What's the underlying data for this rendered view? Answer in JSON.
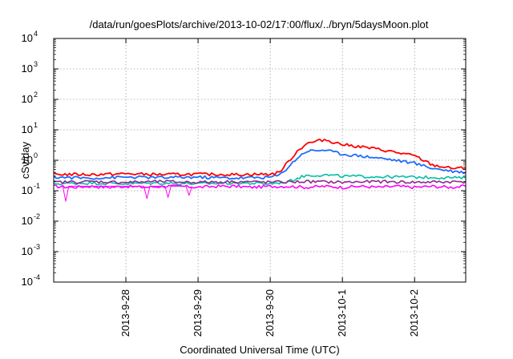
{
  "chart_data": {
    "type": "line",
    "title": "/data/run/goesPlots/archive/2013-10-02/17:00/flux/../bryn/5daysMoon.plot",
    "xlabel": "Coordinated Universal Time (UTC)",
    "ylabel": "cSv/day",
    "xlim": [
      "2013-09-27 00:00",
      "2013-10-02 17:00"
    ],
    "ylim": [
      0.0001,
      10000
    ],
    "yscale": "log",
    "grid": true,
    "legend": "none",
    "x_ticks": [
      "2013-9-28",
      "2013-9-29",
      "2013-9-30",
      "2013-10-1",
      "2013-10-2"
    ],
    "y_ticks": [
      {
        "value": 0.0001,
        "base": "10",
        "exp": "-4"
      },
      {
        "value": 0.001,
        "base": "10",
        "exp": "-3"
      },
      {
        "value": 0.01,
        "base": "10",
        "exp": "-2"
      },
      {
        "value": 0.1,
        "base": "10",
        "exp": "-1"
      },
      {
        "value": 1,
        "base": "10",
        "exp": "0"
      },
      {
        "value": 10,
        "base": "10",
        "exp": "1"
      },
      {
        "value": 100,
        "base": "10",
        "exp": "2"
      },
      {
        "value": 1000,
        "base": "10",
        "exp": "3"
      },
      {
        "value": 10000,
        "base": "10",
        "exp": "4"
      }
    ],
    "series": [
      {
        "color": "#ff00ff",
        "line_width": 1.6,
        "points": [
          [
            "2013-09-27 00:00",
            0.14
          ],
          [
            "2013-09-27 06:00",
            0.13
          ],
          [
            "2013-09-27 12:00",
            0.14
          ],
          [
            "2013-09-27 18:00",
            0.13
          ],
          [
            "2013-09-28 00:00",
            0.14
          ],
          [
            "2013-09-28 06:00",
            0.13
          ],
          [
            "2013-09-28 12:00",
            0.14
          ],
          [
            "2013-09-28 18:00",
            0.14
          ],
          [
            "2013-09-29 00:00",
            0.13
          ],
          [
            "2013-09-29 06:00",
            0.14
          ],
          [
            "2013-09-29 12:00",
            0.14
          ],
          [
            "2013-09-29 18:00",
            0.13
          ],
          [
            "2013-09-30 00:00",
            0.14
          ],
          [
            "2013-09-30 06:00",
            0.14
          ],
          [
            "2013-09-30 12:00",
            0.13
          ],
          [
            "2013-09-30 18:00",
            0.14
          ],
          [
            "2013-10-01 00:00",
            0.13
          ],
          [
            "2013-10-01 06:00",
            0.14
          ],
          [
            "2013-10-01 12:00",
            0.13
          ],
          [
            "2013-10-01 18:00",
            0.14
          ],
          [
            "2013-10-02 00:00",
            0.13
          ],
          [
            "2013-10-02 06:00",
            0.14
          ],
          [
            "2013-10-02 12:00",
            0.13
          ],
          [
            "2013-10-02 17:00",
            0.14
          ]
        ]
      },
      {
        "color": "#00bfa5",
        "line_width": 1.6,
        "points": [
          [
            "2013-09-27 00:00",
            0.17
          ],
          [
            "2013-09-27 12:00",
            0.18
          ],
          [
            "2013-09-28 00:00",
            0.17
          ],
          [
            "2013-09-28 12:00",
            0.18
          ],
          [
            "2013-09-29 00:00",
            0.17
          ],
          [
            "2013-09-29 12:00",
            0.18
          ],
          [
            "2013-09-30 00:00",
            0.17
          ],
          [
            "2013-09-30 06:00",
            0.2
          ],
          [
            "2013-09-30 09:00",
            0.26
          ],
          [
            "2013-09-30 12:00",
            0.32
          ],
          [
            "2013-09-30 18:00",
            0.33
          ],
          [
            "2013-10-01 00:00",
            0.3
          ],
          [
            "2013-10-01 12:00",
            0.29
          ],
          [
            "2013-10-02 00:00",
            0.28
          ],
          [
            "2013-10-02 12:00",
            0.27
          ],
          [
            "2013-10-02 17:00",
            0.26
          ]
        ]
      },
      {
        "color": "#8b2a8b",
        "line_width": 1.6,
        "points": [
          [
            "2013-09-27 00:00",
            0.19
          ],
          [
            "2013-09-27 12:00",
            0.2
          ],
          [
            "2013-09-28 00:00",
            0.19
          ],
          [
            "2013-09-28 12:00",
            0.2
          ],
          [
            "2013-09-29 00:00",
            0.19
          ],
          [
            "2013-09-29 12:00",
            0.2
          ],
          [
            "2013-09-30 00:00",
            0.19
          ],
          [
            "2013-09-30 12:00",
            0.2
          ],
          [
            "2013-10-01 00:00",
            0.19
          ],
          [
            "2013-10-01 12:00",
            0.2
          ],
          [
            "2013-10-02 00:00",
            0.19
          ],
          [
            "2013-10-02 17:00",
            0.2
          ]
        ]
      },
      {
        "color": "#1e6cff",
        "line_width": 1.8,
        "points": [
          [
            "2013-09-27 00:00",
            0.28
          ],
          [
            "2013-09-27 12:00",
            0.26
          ],
          [
            "2013-09-28 00:00",
            0.28
          ],
          [
            "2013-09-28 12:00",
            0.27
          ],
          [
            "2013-09-29 00:00",
            0.28
          ],
          [
            "2013-09-29 12:00",
            0.26
          ],
          [
            "2013-09-30 00:00",
            0.28
          ],
          [
            "2013-09-30 03:00",
            0.32
          ],
          [
            "2013-09-30 06:00",
            0.6
          ],
          [
            "2013-09-30 09:00",
            1.2
          ],
          [
            "2013-09-30 12:00",
            2.0
          ],
          [
            "2013-09-30 18:00",
            2.2
          ],
          [
            "2013-10-01 00:00",
            1.6
          ],
          [
            "2013-10-01 06:00",
            1.4
          ],
          [
            "2013-10-01 12:00",
            1.2
          ],
          [
            "2013-10-01 18:00",
            1.0
          ],
          [
            "2013-10-02 00:00",
            0.8
          ],
          [
            "2013-10-02 06:00",
            0.55
          ],
          [
            "2013-10-02 12:00",
            0.45
          ],
          [
            "2013-10-02 17:00",
            0.4
          ]
        ]
      },
      {
        "color": "#ff0000",
        "line_width": 1.8,
        "points": [
          [
            "2013-09-27 00:00",
            0.35
          ],
          [
            "2013-09-27 12:00",
            0.34
          ],
          [
            "2013-09-28 00:00",
            0.36
          ],
          [
            "2013-09-28 12:00",
            0.34
          ],
          [
            "2013-09-29 00:00",
            0.35
          ],
          [
            "2013-09-29 12:00",
            0.34
          ],
          [
            "2013-09-30 00:00",
            0.35
          ],
          [
            "2013-09-30 03:00",
            0.4
          ],
          [
            "2013-09-30 06:00",
            0.9
          ],
          [
            "2013-09-30 09:00",
            2.0
          ],
          [
            "2013-09-30 12:00",
            3.5
          ],
          [
            "2013-09-30 18:00",
            4.8
          ],
          [
            "2013-10-01 00:00",
            3.3
          ],
          [
            "2013-10-01 06:00",
            2.8
          ],
          [
            "2013-10-01 12:00",
            2.3
          ],
          [
            "2013-10-01 18:00",
            1.8
          ],
          [
            "2013-10-02 00:00",
            1.4
          ],
          [
            "2013-10-02 06:00",
            0.7
          ],
          [
            "2013-10-02 12:00",
            0.55
          ],
          [
            "2013-10-02 17:00",
            0.55
          ]
        ]
      },
      {
        "color": "#ff00ff",
        "line_width": 1.0,
        "points": [
          [
            "2013-09-27 03:00",
            0.14
          ],
          [
            "2013-09-27 04:00",
            0.045
          ],
          [
            "2013-09-27 05:00",
            0.14
          ],
          [
            "2013-09-28 06:00",
            0.14
          ],
          [
            "2013-09-28 07:00",
            0.055
          ],
          [
            "2013-09-28 08:00",
            0.14
          ],
          [
            "2013-09-28 13:00",
            0.14
          ],
          [
            "2013-09-28 14:00",
            0.06
          ],
          [
            "2013-09-28 15:00",
            0.14
          ],
          [
            "2013-09-28 20:00",
            0.14
          ],
          [
            "2013-09-28 21:00",
            0.07
          ],
          [
            "2013-09-28 22:00",
            0.14
          ]
        ]
      }
    ]
  }
}
